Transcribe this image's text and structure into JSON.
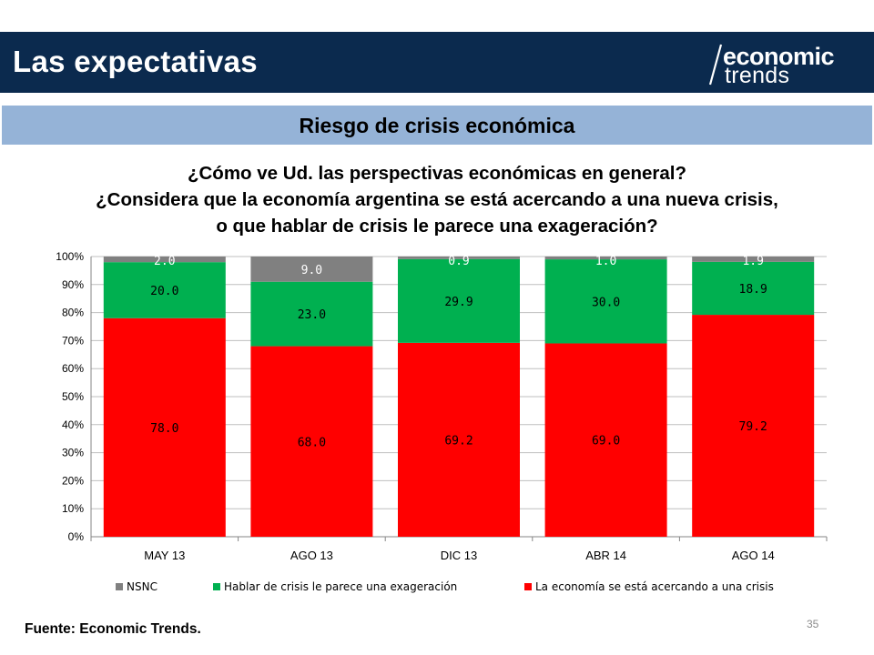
{
  "header": {
    "title": "Las expectativas",
    "logo_line1": "economic",
    "logo_line2": "trends"
  },
  "subheader": {
    "title": "Riesgo de crisis económica"
  },
  "question": {
    "line1": "¿Cómo ve Ud. las perspectivas económicas en general?",
    "line2": "¿Considera que la economía argentina se está acercando a una nueva crisis,",
    "line3": "o que hablar de crisis le parece una exageración?"
  },
  "colors": {
    "header_bg": "#0b2a4e",
    "subheader_bg": "#95b3d7",
    "crisis": "#ff0000",
    "exageracion": "#00b050",
    "nsnc": "#808080"
  },
  "chart_data": {
    "type": "bar",
    "stacked": true,
    "categories": [
      "MAY 13",
      "AGO 13",
      "DIC 13",
      "ABR 14",
      "AGO 14"
    ],
    "series": [
      {
        "name": "La economía se está acercando a una crisis",
        "values": [
          78.0,
          68.0,
          69.2,
          69.0,
          79.2
        ],
        "labels": [
          "78.0",
          "68.0",
          "69.2",
          "69.0",
          "79.2"
        ],
        "color": "#ff0000"
      },
      {
        "name": "Hablar de crisis le parece una exageración",
        "values": [
          20.0,
          23.0,
          29.9,
          30.0,
          18.9
        ],
        "labels": [
          "20.0",
          "23.0",
          "29.9",
          "30.0",
          "18.9"
        ],
        "color": "#00b050"
      },
      {
        "name": "NSNC",
        "values": [
          2.0,
          9.0,
          0.9,
          1.0,
          1.9
        ],
        "labels": [
          "2.0",
          "9.0",
          "0.9",
          "1.0",
          "1.9"
        ],
        "color": "#808080"
      }
    ],
    "legend_order": [
      "NSNC",
      "Hablar de crisis le parece una exageración",
      "La economía se está acercando a una crisis"
    ],
    "legend_position": "bottom",
    "y_ticks": [
      "0%",
      "10%",
      "20%",
      "30%",
      "40%",
      "50%",
      "60%",
      "70%",
      "80%",
      "90%",
      "100%"
    ],
    "ylim": [
      0,
      100
    ],
    "grid": true
  },
  "footer": {
    "source": "Fuente: Economic Trends.",
    "page_number": "35"
  }
}
